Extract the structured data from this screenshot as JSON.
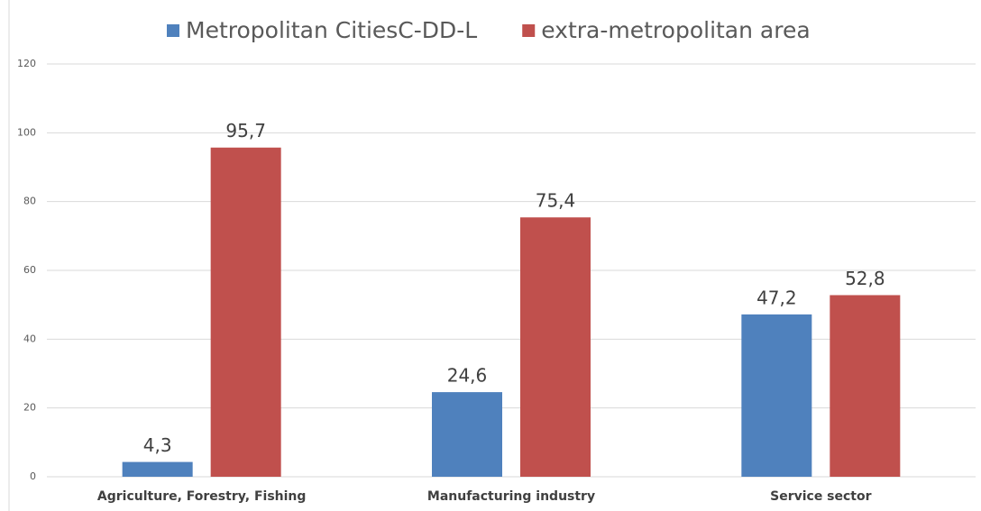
{
  "chart_data": {
    "type": "bar",
    "categories": [
      "Agriculture, Forestry, Fishing",
      "Manufacturing industry",
      "Service sector"
    ],
    "series": [
      {
        "name": "Metropolitan CitiesC-DD-L",
        "color": "#4f81bd",
        "values": [
          4.3,
          24.6,
          47.2
        ],
        "value_labels": [
          "4,3",
          "24,6",
          "47,2"
        ]
      },
      {
        "name": "extra-metropolitan area",
        "color": "#c0504d",
        "values": [
          95.7,
          75.4,
          52.8
        ],
        "value_labels": [
          "95,7",
          "75,4",
          "52,8"
        ]
      }
    ],
    "ylim": [
      0,
      120
    ],
    "yticks": [
      0,
      20,
      40,
      60,
      80,
      100,
      120
    ],
    "grid": true,
    "legend": "top"
  }
}
